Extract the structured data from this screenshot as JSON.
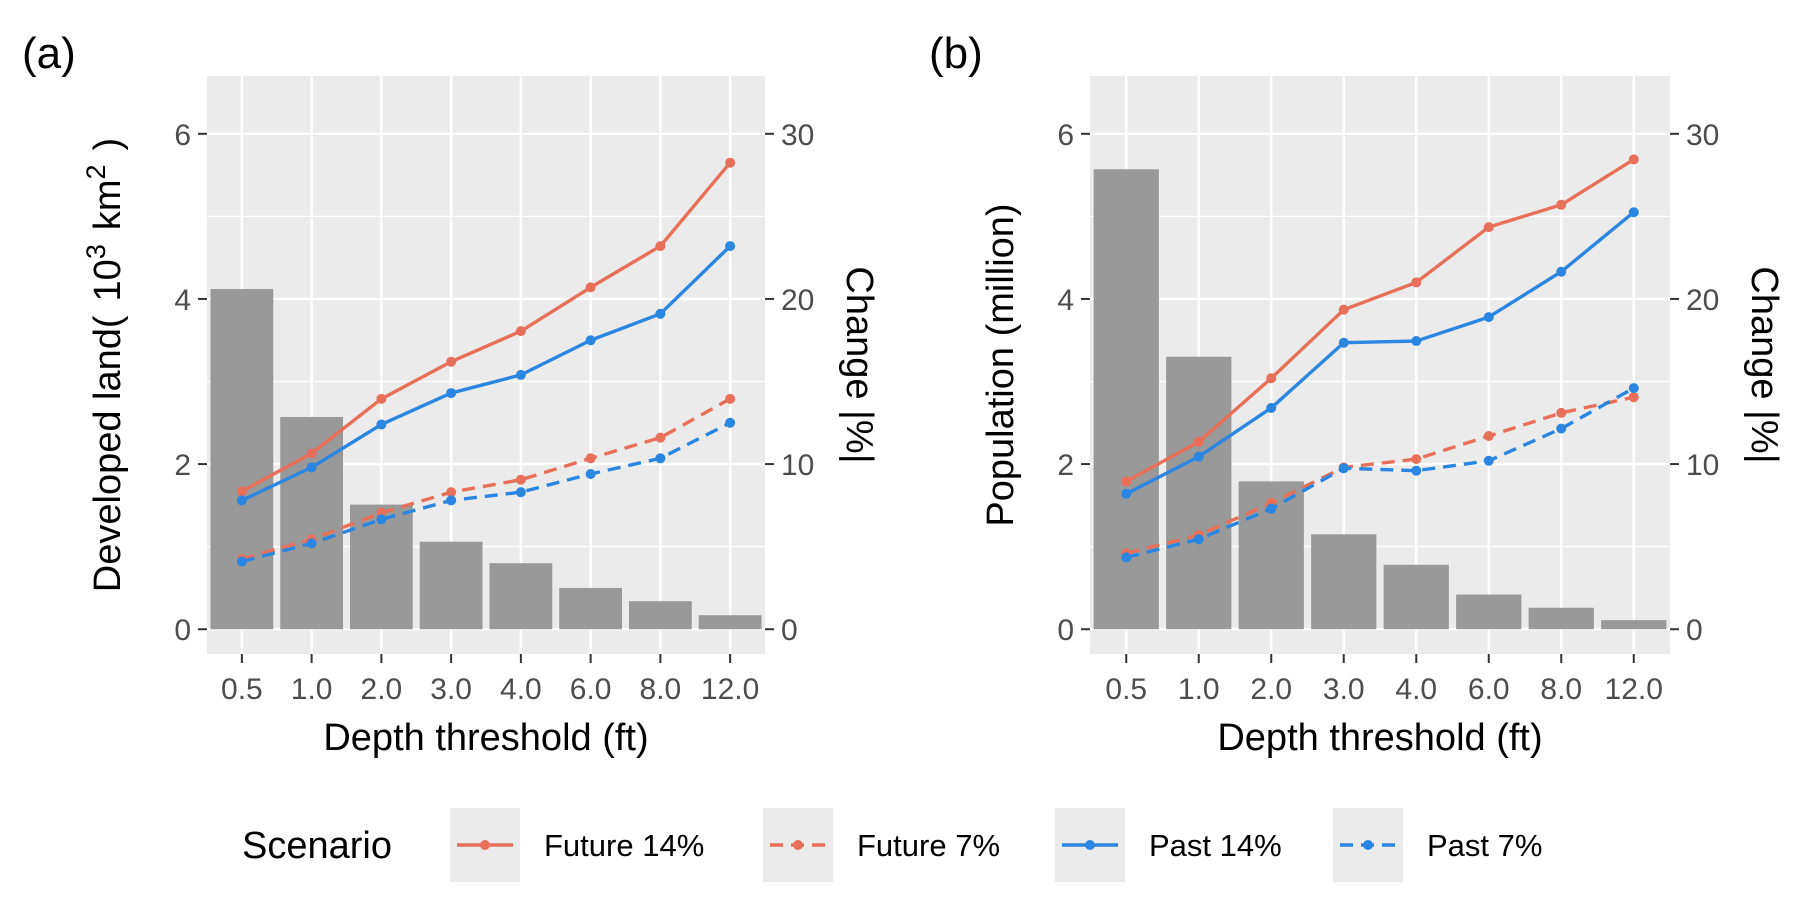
{
  "chart_data": [
    {
      "type": "bar",
      "panel_tag": "(a)",
      "ylabel_parts": [
        "Developed land(",
        "10",
        "3",
        "km",
        "2",
        ")"
      ],
      "xlabel": "Depth threshold (ft)",
      "y2label": "Change |%|",
      "categories": [
        "0.5",
        "1.0",
        "2.0",
        "3.0",
        "4.0",
        "6.0",
        "8.0",
        "12.0"
      ],
      "ylim": [
        -0.3,
        6.7
      ],
      "yticks": [
        0,
        2,
        4,
        6
      ],
      "y2ticks": [
        0,
        10,
        20,
        30
      ],
      "y2_scale": 5,
      "bars": {
        "color": "#999999",
        "values": [
          4.12,
          2.57,
          1.51,
          1.06,
          0.8,
          0.5,
          0.34,
          0.17
        ]
      },
      "series": [
        {
          "name": "Future 14%",
          "values": [
            1.67,
            2.13,
            2.79,
            3.24,
            3.61,
            4.14,
            4.64,
            5.65
          ]
        },
        {
          "name": "Future 7%",
          "values": [
            0.85,
            1.09,
            1.41,
            1.66,
            1.81,
            2.07,
            2.32,
            2.79
          ]
        },
        {
          "name": "Past 14%",
          "values": [
            1.56,
            1.96,
            2.48,
            2.86,
            3.08,
            3.5,
            3.82,
            4.64
          ]
        },
        {
          "name": "Past 7%",
          "values": [
            0.82,
            1.04,
            1.33,
            1.56,
            1.66,
            1.88,
            2.07,
            2.5
          ]
        }
      ]
    },
    {
      "type": "bar",
      "panel_tag": "(b)",
      "ylabel": "Population (million)",
      "xlabel": "Depth threshold (ft)",
      "y2label": "Change |%|",
      "categories": [
        "0.5",
        "1.0",
        "2.0",
        "3.0",
        "4.0",
        "6.0",
        "8.0",
        "12.0"
      ],
      "ylim": [
        -0.3,
        6.7
      ],
      "yticks": [
        0,
        2,
        4,
        6
      ],
      "y2ticks": [
        0,
        10,
        20,
        30
      ],
      "y2_scale": 5,
      "bars": {
        "color": "#999999",
        "values": [
          5.57,
          3.3,
          1.79,
          1.15,
          0.78,
          0.42,
          0.26,
          0.11
        ]
      },
      "series": [
        {
          "name": "Future 14%",
          "values": [
            1.79,
            2.27,
            3.04,
            3.87,
            4.2,
            4.87,
            5.14,
            5.69
          ]
        },
        {
          "name": "Future 7%",
          "values": [
            0.92,
            1.14,
            1.53,
            1.96,
            2.06,
            2.34,
            2.62,
            2.81
          ]
        },
        {
          "name": "Past 14%",
          "values": [
            1.64,
            2.09,
            2.68,
            3.47,
            3.49,
            3.78,
            4.33,
            5.05
          ]
        },
        {
          "name": "Past 7%",
          "values": [
            0.87,
            1.09,
            1.46,
            1.95,
            1.92,
            2.04,
            2.43,
            2.92
          ]
        }
      ]
    }
  ],
  "legend": {
    "title": "Scenario",
    "items": [
      {
        "label": "Future 14%",
        "color": "#e8705a",
        "dash": "solid"
      },
      {
        "label": "Future 7%",
        "color": "#e8705a",
        "dash": "dashed"
      },
      {
        "label": "Past 14%",
        "color": "#2a86e0",
        "dash": "solid"
      },
      {
        "label": "Past 7%",
        "color": "#2a86e0",
        "dash": "dashed"
      }
    ]
  },
  "colors": {
    "panel_background": "#ebebeb",
    "grid": "#ffffff",
    "bar": "#999999",
    "future": "#e8705a",
    "past": "#2a86e0"
  }
}
